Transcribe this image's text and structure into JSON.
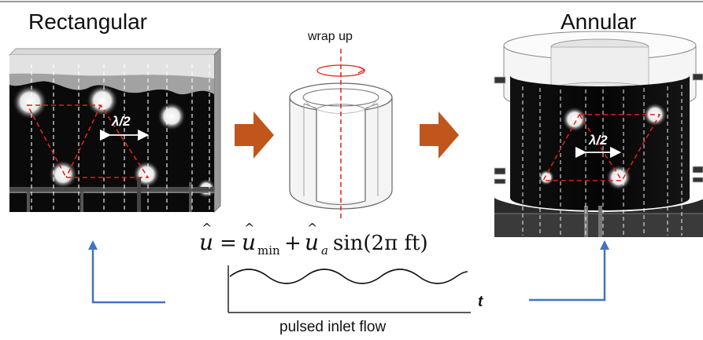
{
  "titles": {
    "left": "Rectangular",
    "right": "Annular"
  },
  "wrap_label": "wrap up",
  "lambda_label": "λ/2",
  "equation": {
    "u": "u",
    "equals": "=",
    "umin_sub": "min",
    "plus": "+",
    "ua_sub": "a",
    "sin_expr": "sin(2π ft)",
    "hat": "^"
  },
  "time_axis_label": "t",
  "bottom_label": "pulsed inlet flow",
  "colors": {
    "arrow_orange": "#c0561c",
    "return_arrow_blue": "#4472c4",
    "dashed_red": "#e0201c",
    "dashed_white": "#ffffff",
    "photo_dark": "#0a0a0a"
  }
}
